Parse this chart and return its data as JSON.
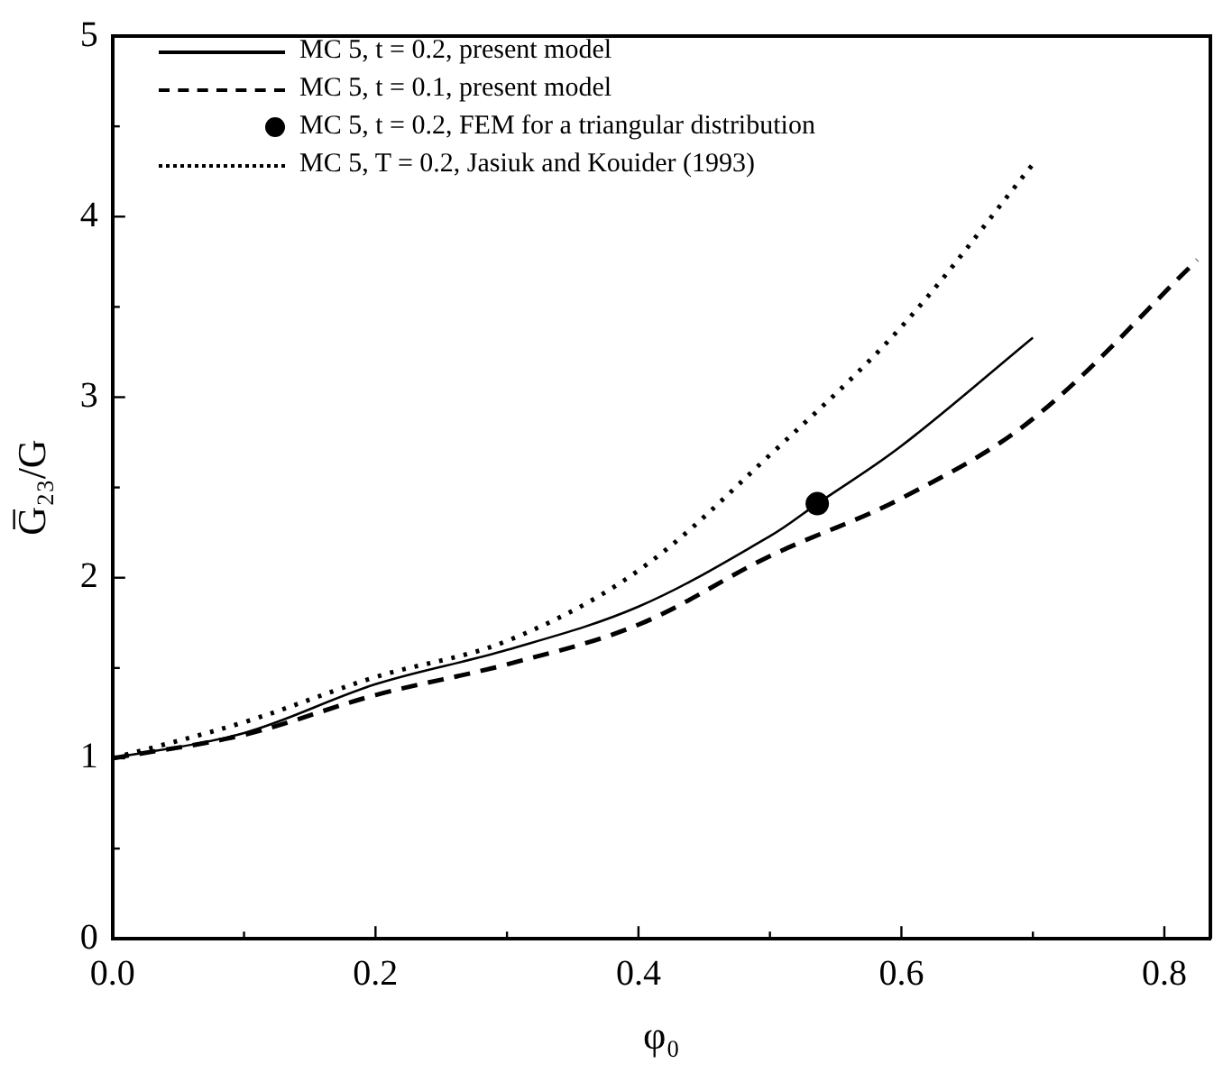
{
  "chart_data": {
    "type": "line",
    "xlabel": "φ₀",
    "ylabel": "G̅₂₃/G",
    "xlim": [
      0,
      0.835
    ],
    "ylim": [
      0,
      5
    ],
    "xticks": [
      {
        "value": 0,
        "label": "0.0"
      },
      {
        "value": 0.1,
        "label": null
      },
      {
        "value": 0.2,
        "label": "0.2"
      },
      {
        "value": 0.3,
        "label": null
      },
      {
        "value": 0.4,
        "label": "0.4"
      },
      {
        "value": 0.5,
        "label": null
      },
      {
        "value": 0.6,
        "label": "0.6"
      },
      {
        "value": 0.7,
        "label": null
      },
      {
        "value": 0.8,
        "label": "0.8"
      }
    ],
    "yticks": [
      0,
      {
        "value": 0.5,
        "label": null
      },
      1,
      {
        "value": 1.5,
        "label": null
      },
      2,
      {
        "value": 2.5,
        "label": null
      },
      3,
      {
        "value": 3.5,
        "label": null
      },
      4,
      {
        "value": 4.5,
        "label": null
      },
      5
    ],
    "grid": false,
    "legend": "top left",
    "series": [
      {
        "name": "MC 5, t = 0.2, present model",
        "line_style": "solid",
        "marker": "none",
        "color": "#000000",
        "x": [
          0,
          0.1,
          0.2,
          0.3,
          0.4,
          0.5,
          0.536,
          0.6,
          0.7
        ],
        "values": [
          1,
          1.14,
          1.41,
          1.6,
          1.84,
          2.23,
          2.41,
          2.73,
          3.33
        ]
      },
      {
        "name": "MC 5, t = 0.1, present model",
        "line_style": "dashed",
        "marker": "none",
        "color": "#000000",
        "x": [
          0,
          0.1,
          0.2,
          0.3,
          0.4,
          0.5,
          0.6,
          0.7,
          0.825
        ],
        "values": [
          1,
          1.13,
          1.35,
          1.52,
          1.74,
          2.12,
          2.44,
          2.88,
          3.76
        ]
      },
      {
        "name": "MC 5, t = 0.2, FEM for a triangular distribution",
        "type": "scatter",
        "marker": "circle",
        "color": "#000000",
        "x": [
          0.536
        ],
        "values": [
          2.41
        ]
      },
      {
        "name": "MC 5, T = 0.2, Jasiuk and Kouider (1993)",
        "line_style": "dotted",
        "marker": "none",
        "color": "#000000",
        "x": [
          0,
          0.1,
          0.2,
          0.3,
          0.4,
          0.5,
          0.6,
          0.7
        ],
        "values": [
          1,
          1.2,
          1.45,
          1.65,
          2.04,
          2.68,
          3.39,
          4.29
        ]
      }
    ]
  }
}
